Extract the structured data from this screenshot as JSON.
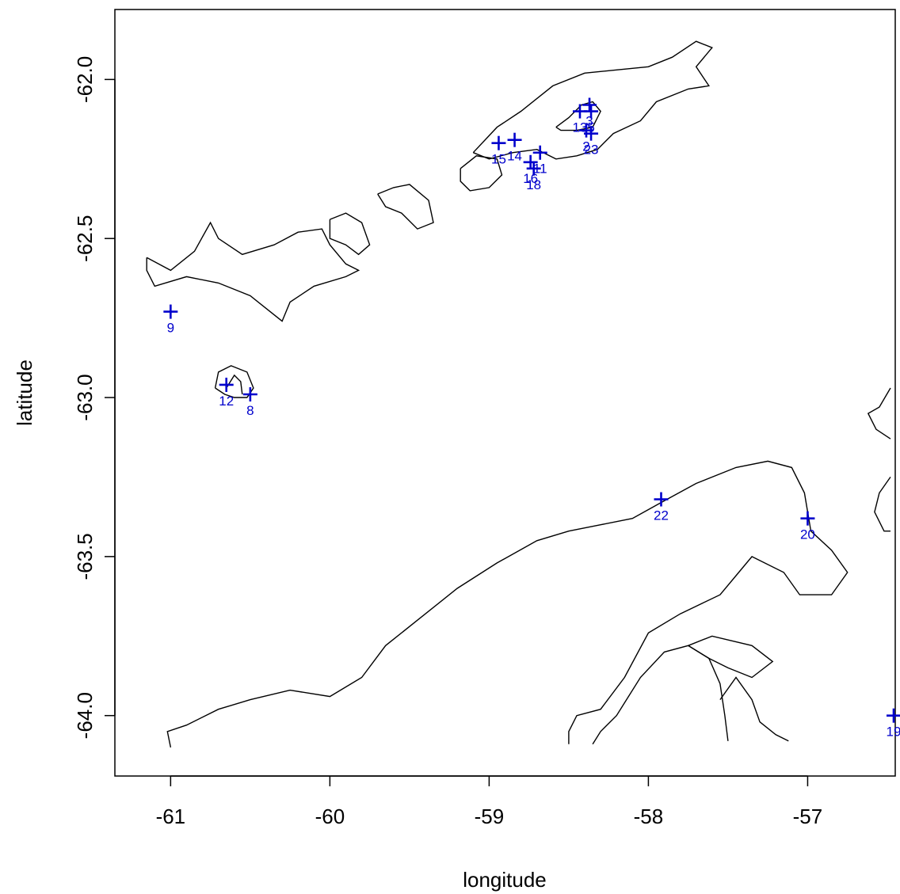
{
  "chart_data": {
    "type": "scatter",
    "title": "",
    "xlabel": "longitude",
    "ylabel": "latitude",
    "xlim": [
      -61.35,
      -56.45
    ],
    "ylim": [
      -64.19,
      -61.78
    ],
    "x_ticks": [
      {
        "value": -61,
        "label": "-61"
      },
      {
        "value": -60,
        "label": "-60"
      },
      {
        "value": -59,
        "label": "-59"
      },
      {
        "value": -58,
        "label": "-58"
      },
      {
        "value": -57,
        "label": "-57"
      }
    ],
    "y_ticks": [
      {
        "value": -62.0,
        "label": "-62.0"
      },
      {
        "value": -62.5,
        "label": "-62.5"
      },
      {
        "value": -63.0,
        "label": "-63.0"
      },
      {
        "value": -63.5,
        "label": "-63.5"
      },
      {
        "value": -64.0,
        "label": "-64.0"
      }
    ],
    "grid": false,
    "marker": "+",
    "marker_color": "#0000CC",
    "line_color": "#000000",
    "points": [
      {
        "label": "9",
        "lon": -61.0,
        "lat": -62.73
      },
      {
        "label": "12",
        "lon": -60.65,
        "lat": -62.96
      },
      {
        "label": "8",
        "lon": -60.5,
        "lat": -62.99
      },
      {
        "label": "15",
        "lon": -58.94,
        "lat": -62.2
      },
      {
        "label": "14",
        "lon": -58.84,
        "lat": -62.19
      },
      {
        "label": "16",
        "lon": -58.74,
        "lat": -62.26
      },
      {
        "label": "18",
        "lon": -58.72,
        "lat": -62.28
      },
      {
        "label": "11",
        "lon": -58.68,
        "lat": -62.23
      },
      {
        "label": "13",
        "lon": -58.43,
        "lat": -62.1
      },
      {
        "label": "2",
        "lon": -58.39,
        "lat": -62.16
      },
      {
        "label": "23",
        "lon": -58.36,
        "lat": -62.17
      },
      {
        "label": "3",
        "lon": -58.37,
        "lat": -62.08
      },
      {
        "label": "5",
        "lon": -58.36,
        "lat": -62.1
      },
      {
        "label": "22",
        "lon": -57.92,
        "lat": -63.32
      },
      {
        "label": "20",
        "lon": -57.0,
        "lat": -63.38
      },
      {
        "label": "19",
        "lon": -56.46,
        "lat": -64.0
      }
    ],
    "coastlines": [
      {
        "name": "king-george-island",
        "coords": [
          [
            -59.1,
            -62.23
          ],
          [
            -58.95,
            -62.15
          ],
          [
            -58.8,
            -62.1
          ],
          [
            -58.6,
            -62.02
          ],
          [
            -58.4,
            -61.98
          ],
          [
            -58.2,
            -61.97
          ],
          [
            -58.0,
            -61.96
          ],
          [
            -57.85,
            -61.93
          ],
          [
            -57.7,
            -61.88
          ],
          [
            -57.6,
            -61.9
          ],
          [
            -57.7,
            -61.96
          ],
          [
            -57.62,
            -62.02
          ],
          [
            -57.75,
            -62.03
          ],
          [
            -57.95,
            -62.07
          ],
          [
            -58.05,
            -62.13
          ],
          [
            -58.22,
            -62.17
          ],
          [
            -58.32,
            -62.22
          ],
          [
            -58.45,
            -62.24
          ],
          [
            -58.58,
            -62.25
          ],
          [
            -58.7,
            -62.22
          ],
          [
            -58.85,
            -62.23
          ],
          [
            -59.0,
            -62.25
          ],
          [
            -59.1,
            -62.23
          ]
        ]
      },
      {
        "name": "maxwell-bay-inner",
        "coords": [
          [
            -58.58,
            -62.15
          ],
          [
            -58.5,
            -62.12
          ],
          [
            -58.42,
            -62.08
          ],
          [
            -58.35,
            -62.07
          ],
          [
            -58.3,
            -62.1
          ],
          [
            -58.35,
            -62.15
          ],
          [
            -58.45,
            -62.16
          ],
          [
            -58.55,
            -62.16
          ],
          [
            -58.58,
            -62.15
          ]
        ]
      },
      {
        "name": "nelson-island",
        "coords": [
          [
            -59.18,
            -62.28
          ],
          [
            -59.08,
            -62.24
          ],
          [
            -58.95,
            -62.25
          ],
          [
            -58.92,
            -62.3
          ],
          [
            -59.0,
            -62.34
          ],
          [
            -59.12,
            -62.35
          ],
          [
            -59.18,
            -62.32
          ],
          [
            -59.18,
            -62.28
          ]
        ]
      },
      {
        "name": "robert-island",
        "coords": [
          [
            -59.7,
            -62.36
          ],
          [
            -59.6,
            -62.34
          ],
          [
            -59.5,
            -62.33
          ],
          [
            -59.38,
            -62.38
          ],
          [
            -59.35,
            -62.45
          ],
          [
            -59.45,
            -62.47
          ],
          [
            -59.55,
            -62.42
          ],
          [
            -59.65,
            -62.4
          ],
          [
            -59.7,
            -62.36
          ]
        ]
      },
      {
        "name": "greenwich-island",
        "coords": [
          [
            -60.0,
            -62.44
          ],
          [
            -59.9,
            -62.42
          ],
          [
            -59.8,
            -62.45
          ],
          [
            -59.75,
            -62.52
          ],
          [
            -59.82,
            -62.55
          ],
          [
            -59.9,
            -62.52
          ],
          [
            -60.0,
            -62.5
          ],
          [
            -60.0,
            -62.44
          ]
        ]
      },
      {
        "name": "livingston-island",
        "coords": [
          [
            -61.15,
            -62.56
          ],
          [
            -61.0,
            -62.6
          ],
          [
            -60.85,
            -62.54
          ],
          [
            -60.75,
            -62.45
          ],
          [
            -60.7,
            -62.5
          ],
          [
            -60.55,
            -62.55
          ],
          [
            -60.35,
            -62.52
          ],
          [
            -60.2,
            -62.48
          ],
          [
            -60.05,
            -62.47
          ],
          [
            -60.0,
            -62.52
          ],
          [
            -59.9,
            -62.58
          ],
          [
            -59.82,
            -62.6
          ],
          [
            -59.9,
            -62.62
          ],
          [
            -60.1,
            -62.65
          ],
          [
            -60.25,
            -62.7
          ],
          [
            -60.3,
            -62.76
          ],
          [
            -60.4,
            -62.72
          ],
          [
            -60.5,
            -62.68
          ],
          [
            -60.7,
            -62.64
          ],
          [
            -60.9,
            -62.62
          ],
          [
            -61.1,
            -62.65
          ],
          [
            -61.15,
            -62.6
          ],
          [
            -61.15,
            -62.56
          ]
        ]
      },
      {
        "name": "deception-island",
        "coords": [
          [
            -60.72,
            -62.97
          ],
          [
            -60.7,
            -62.92
          ],
          [
            -60.62,
            -62.9
          ],
          [
            -60.52,
            -62.92
          ],
          [
            -60.48,
            -62.97
          ],
          [
            -60.52,
            -63.0
          ],
          [
            -60.6,
            -63.0
          ],
          [
            -60.66,
            -62.99
          ],
          [
            -60.72,
            -62.97
          ]
        ]
      },
      {
        "name": "port-foster",
        "coords": [
          [
            -60.65,
            -62.97
          ],
          [
            -60.6,
            -62.93
          ],
          [
            -60.56,
            -62.95
          ],
          [
            -60.55,
            -62.99
          ]
        ]
      },
      {
        "name": "antarctic-peninsula-north",
        "coords": [
          [
            -61.0,
            -64.1
          ],
          [
            -61.02,
            -64.05
          ],
          [
            -60.9,
            -64.03
          ],
          [
            -60.7,
            -63.98
          ],
          [
            -60.5,
            -63.95
          ],
          [
            -60.25,
            -63.92
          ],
          [
            -60.0,
            -63.94
          ],
          [
            -59.8,
            -63.88
          ],
          [
            -59.65,
            -63.78
          ],
          [
            -59.45,
            -63.7
          ],
          [
            -59.2,
            -63.6
          ],
          [
            -58.95,
            -63.52
          ],
          [
            -58.7,
            -63.45
          ],
          [
            -58.5,
            -63.42
          ],
          [
            -58.3,
            -63.4
          ],
          [
            -58.1,
            -63.38
          ],
          [
            -57.92,
            -63.33
          ],
          [
            -57.7,
            -63.27
          ],
          [
            -57.45,
            -63.22
          ],
          [
            -57.25,
            -63.2
          ],
          [
            -57.1,
            -63.22
          ],
          [
            -57.02,
            -63.3
          ],
          [
            -56.98,
            -63.42
          ],
          [
            -56.85,
            -63.48
          ],
          [
            -56.75,
            -63.55
          ],
          [
            -56.85,
            -63.62
          ],
          [
            -57.05,
            -63.62
          ],
          [
            -57.15,
            -63.55
          ],
          [
            -57.35,
            -63.5
          ],
          [
            -57.45,
            -63.56
          ],
          [
            -57.55,
            -63.62
          ],
          [
            -57.8,
            -63.68
          ],
          [
            -58.0,
            -63.74
          ],
          [
            -58.15,
            -63.88
          ],
          [
            -58.3,
            -63.98
          ],
          [
            -58.45,
            -64.0
          ],
          [
            -58.5,
            -64.05
          ],
          [
            -58.5,
            -64.09
          ]
        ]
      },
      {
        "name": "prince-gustav-area",
        "coords": [
          [
            -58.35,
            -64.09
          ],
          [
            -58.3,
            -64.05
          ],
          [
            -58.2,
            -64.0
          ],
          [
            -58.05,
            -63.88
          ],
          [
            -57.9,
            -63.8
          ],
          [
            -57.75,
            -63.78
          ],
          [
            -57.62,
            -63.82
          ],
          [
            -57.55,
            -63.9
          ],
          [
            -57.52,
            -64.0
          ],
          [
            -57.5,
            -64.08
          ]
        ]
      },
      {
        "name": "vega-island",
        "coords": [
          [
            -57.75,
            -63.78
          ],
          [
            -57.6,
            -63.75
          ],
          [
            -57.35,
            -63.78
          ],
          [
            -57.22,
            -63.83
          ],
          [
            -57.35,
            -63.88
          ],
          [
            -57.5,
            -63.85
          ],
          [
            -57.62,
            -63.82
          ],
          [
            -57.75,
            -63.78
          ]
        ]
      },
      {
        "name": "james-ross-north",
        "coords": [
          [
            -57.55,
            -63.95
          ],
          [
            -57.45,
            -63.88
          ],
          [
            -57.35,
            -63.95
          ],
          [
            -57.3,
            -64.02
          ],
          [
            -57.2,
            -64.06
          ],
          [
            -57.12,
            -64.08
          ]
        ]
      },
      {
        "name": "joinville-fragment-a",
        "coords": [
          [
            -56.48,
            -62.97
          ],
          [
            -56.55,
            -63.03
          ],
          [
            -56.62,
            -63.05
          ],
          [
            -56.57,
            -63.1
          ],
          [
            -56.48,
            -63.13
          ]
        ]
      },
      {
        "name": "joinville-fragment-b",
        "coords": [
          [
            -56.48,
            -63.25
          ],
          [
            -56.55,
            -63.3
          ],
          [
            -56.58,
            -63.36
          ],
          [
            -56.52,
            -63.42
          ],
          [
            -56.48,
            -63.42
          ]
        ]
      }
    ]
  }
}
